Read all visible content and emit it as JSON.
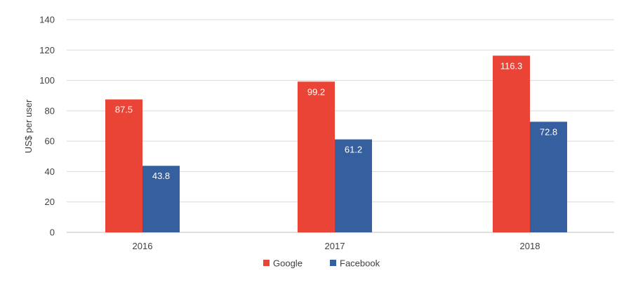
{
  "chart_data": {
    "type": "bar",
    "title": "",
    "xlabel": "",
    "ylabel": "US$ per user",
    "categories": [
      "2016",
      "2017",
      "2018"
    ],
    "series": [
      {
        "name": "Google",
        "values": [
          87.5,
          99.2,
          116.3
        ],
        "color": "#e94436"
      },
      {
        "name": "Facebook",
        "values": [
          43.8,
          61.2,
          72.8
        ],
        "color": "#355f9e"
      }
    ],
    "ylim": [
      0,
      140
    ],
    "yticks": [
      0,
      20,
      40,
      60,
      80,
      100,
      120,
      140
    ],
    "grid": true,
    "legend_position": "bottom-center",
    "data_labels": true
  }
}
